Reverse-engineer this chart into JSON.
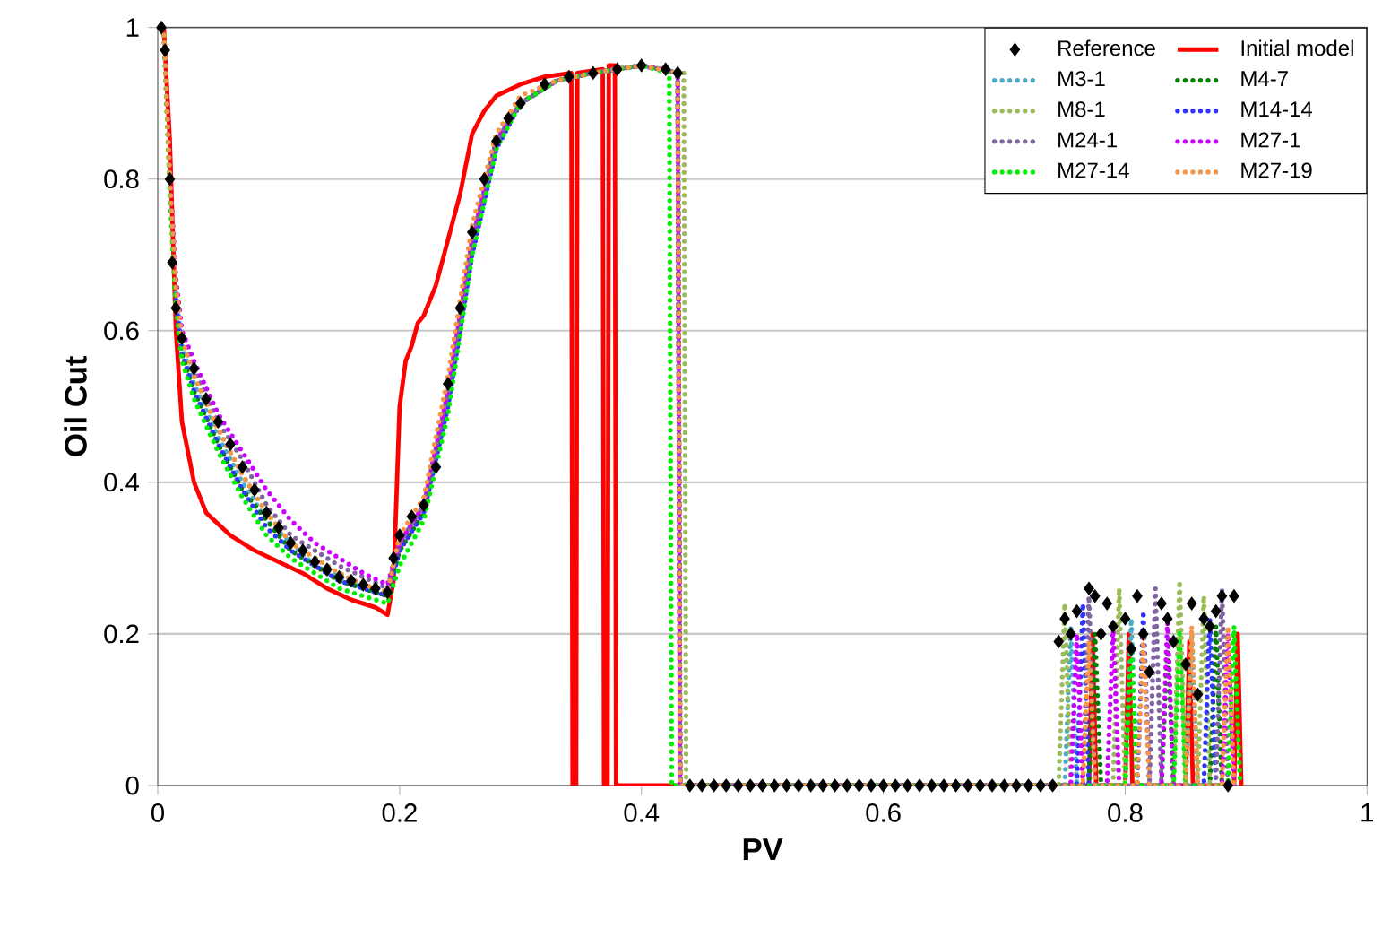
{
  "chart_data": {
    "type": "line",
    "xlabel": "PV",
    "ylabel": "Oil Cut",
    "xlim": [
      0,
      1
    ],
    "ylim": [
      0,
      1
    ],
    "xticks": [
      0,
      0.2,
      0.4,
      0.6,
      0.8,
      1
    ],
    "yticks": [
      0,
      0.2,
      0.4,
      0.6,
      0.8,
      1
    ],
    "grid": "y",
    "legend": "top right",
    "series": [
      {
        "name": "Reference",
        "type": "scatter",
        "marker": "diamond",
        "color": "#000000",
        "x": [
          0.003,
          0.006,
          0.01,
          0.012,
          0.015,
          0.02,
          0.03,
          0.04,
          0.05,
          0.06,
          0.07,
          0.08,
          0.09,
          0.1,
          0.11,
          0.12,
          0.13,
          0.14,
          0.15,
          0.16,
          0.17,
          0.18,
          0.19,
          0.195,
          0.2,
          0.21,
          0.22,
          0.23,
          0.24,
          0.25,
          0.26,
          0.27,
          0.28,
          0.29,
          0.3,
          0.32,
          0.34,
          0.36,
          0.38,
          0.4,
          0.42,
          0.43,
          0.44,
          0.45,
          0.46,
          0.47,
          0.48,
          0.49,
          0.5,
          0.51,
          0.52,
          0.53,
          0.54,
          0.55,
          0.56,
          0.57,
          0.58,
          0.59,
          0.6,
          0.61,
          0.62,
          0.63,
          0.64,
          0.65,
          0.66,
          0.67,
          0.68,
          0.69,
          0.7,
          0.71,
          0.72,
          0.73,
          0.74,
          0.745,
          0.75,
          0.755,
          0.76,
          0.77,
          0.775,
          0.78,
          0.785,
          0.79,
          0.8,
          0.805,
          0.81,
          0.815,
          0.82,
          0.83,
          0.835,
          0.84,
          0.85,
          0.855,
          0.86,
          0.865,
          0.87,
          0.875,
          0.88,
          0.885,
          0.89
        ],
        "values": [
          1,
          0.97,
          0.8,
          0.69,
          0.63,
          0.59,
          0.55,
          0.51,
          0.48,
          0.45,
          0.42,
          0.39,
          0.36,
          0.34,
          0.32,
          0.31,
          0.295,
          0.285,
          0.275,
          0.27,
          0.265,
          0.26,
          0.255,
          0.3,
          0.33,
          0.355,
          0.37,
          0.42,
          0.53,
          0.63,
          0.73,
          0.8,
          0.85,
          0.88,
          0.9,
          0.925,
          0.935,
          0.94,
          0.945,
          0.95,
          0.945,
          0.94,
          0,
          0,
          0,
          0,
          0,
          0,
          0,
          0,
          0,
          0,
          0,
          0,
          0,
          0,
          0,
          0,
          0,
          0,
          0,
          0,
          0,
          0,
          0,
          0,
          0,
          0,
          0,
          0,
          0,
          0,
          0,
          0.19,
          0.22,
          0.2,
          0.23,
          0.26,
          0.25,
          0.2,
          0.24,
          0.21,
          0.22,
          0.18,
          0.25,
          0.2,
          0.15,
          0.24,
          0.22,
          0.19,
          0.16,
          0.24,
          0.12,
          0.22,
          0.21,
          0.23,
          0.25,
          0,
          0.25
        ]
      },
      {
        "name": "Initial model",
        "line_style": "solid",
        "color": "#ff0000",
        "x": [
          0.005,
          0.01,
          0.015,
          0.02,
          0.03,
          0.04,
          0.06,
          0.08,
          0.1,
          0.12,
          0.14,
          0.16,
          0.18,
          0.19,
          0.195,
          0.2,
          0.205,
          0.21,
          0.215,
          0.22,
          0.23,
          0.24,
          0.25,
          0.26,
          0.27,
          0.28,
          0.3,
          0.32,
          0.342,
          0.343,
          0.346,
          0.347,
          0.368,
          0.369,
          0.372,
          0.373,
          0.378,
          0.379,
          0.77,
          0.773,
          0.776,
          0.8,
          0.803,
          0.806,
          0.85,
          0.853,
          0.856,
          0.89,
          0.893,
          0.896
        ],
        "values": [
          1,
          0.85,
          0.6,
          0.48,
          0.4,
          0.36,
          0.33,
          0.31,
          0.295,
          0.28,
          0.26,
          0.245,
          0.235,
          0.225,
          0.27,
          0.5,
          0.56,
          0.58,
          0.61,
          0.62,
          0.66,
          0.72,
          0.78,
          0.86,
          0.89,
          0.91,
          0.925,
          0.935,
          0.94,
          0,
          0,
          0.94,
          0.945,
          0,
          0,
          0.95,
          0.95,
          0,
          0,
          0.2,
          0,
          0,
          0.2,
          0,
          0,
          0.19,
          0,
          0,
          0.2,
          0
        ]
      },
      {
        "name": "M3-1",
        "line_style": "dotted",
        "color": "#4bacc6",
        "x": [
          0.015,
          0.02,
          0.03,
          0.05,
          0.07,
          0.09,
          0.11,
          0.13,
          0.15,
          0.17,
          0.19,
          0.2,
          0.22,
          0.24,
          0.26,
          0.28,
          0.3,
          0.33,
          0.36,
          0.4,
          0.43,
          0.432,
          0.74,
          0.75,
          0.755,
          0.76,
          0.8,
          0.805,
          0.81,
          0.85,
          0.855,
          0.86
        ],
        "values": [
          0.65,
          0.58,
          0.53,
          0.46,
          0.4,
          0.35,
          0.32,
          0.29,
          0.275,
          0.26,
          0.25,
          0.32,
          0.37,
          0.52,
          0.72,
          0.85,
          0.9,
          0.93,
          0.94,
          0.95,
          0.94,
          0,
          0,
          0,
          0.21,
          0,
          0,
          0.22,
          0,
          0,
          0.2,
          0
        ]
      },
      {
        "name": "M4-7",
        "line_style": "dotted",
        "color": "#008000",
        "x": [
          0.005,
          0.01,
          0.015,
          0.02,
          0.03,
          0.05,
          0.07,
          0.09,
          0.11,
          0.13,
          0.15,
          0.17,
          0.19,
          0.2,
          0.22,
          0.24,
          0.26,
          0.28,
          0.3,
          0.33,
          0.36,
          0.4,
          0.43,
          0.432,
          0.74,
          0.77,
          0.775,
          0.78,
          0.83,
          0.835,
          0.84,
          0.87,
          0.875,
          0.88
        ],
        "values": [
          1,
          0.79,
          0.64,
          0.57,
          0.52,
          0.45,
          0.39,
          0.35,
          0.31,
          0.29,
          0.27,
          0.26,
          0.25,
          0.31,
          0.36,
          0.51,
          0.71,
          0.85,
          0.9,
          0.93,
          0.94,
          0.95,
          0.94,
          0,
          0,
          0,
          0.2,
          0,
          0,
          0.19,
          0,
          0,
          0.21,
          0
        ]
      },
      {
        "name": "M8-1",
        "line_style": "dotted",
        "color": "#9bbb59",
        "x": [
          0.005,
          0.01,
          0.015,
          0.02,
          0.03,
          0.05,
          0.07,
          0.09,
          0.11,
          0.13,
          0.15,
          0.17,
          0.19,
          0.2,
          0.22,
          0.24,
          0.26,
          0.28,
          0.3,
          0.33,
          0.36,
          0.4,
          0.435,
          0.437,
          0.745,
          0.75,
          0.755,
          0.79,
          0.795,
          0.8,
          0.84,
          0.845,
          0.85,
          0.86,
          0.865,
          0.87
        ],
        "values": [
          1,
          0.81,
          0.66,
          0.59,
          0.54,
          0.47,
          0.41,
          0.36,
          0.32,
          0.3,
          0.28,
          0.265,
          0.255,
          0.32,
          0.37,
          0.53,
          0.73,
          0.86,
          0.9,
          0.93,
          0.94,
          0.95,
          0.94,
          0,
          0,
          0.24,
          0,
          0,
          0.26,
          0,
          0,
          0.27,
          0,
          0,
          0.25,
          0
        ]
      },
      {
        "name": "M14-14",
        "line_style": "dotted",
        "color": "#3333ff",
        "x": [
          0.015,
          0.02,
          0.03,
          0.05,
          0.07,
          0.09,
          0.11,
          0.13,
          0.15,
          0.17,
          0.19,
          0.2,
          0.22,
          0.24,
          0.26,
          0.28,
          0.3,
          0.33,
          0.36,
          0.4,
          0.43,
          0.432,
          0.76,
          0.765,
          0.77,
          0.81,
          0.815,
          0.82,
          0.865,
          0.87,
          0.875
        ],
        "values": [
          0.64,
          0.57,
          0.52,
          0.45,
          0.39,
          0.34,
          0.31,
          0.29,
          0.27,
          0.26,
          0.25,
          0.31,
          0.36,
          0.5,
          0.7,
          0.84,
          0.9,
          0.93,
          0.94,
          0.95,
          0.94,
          0,
          0,
          0.24,
          0,
          0,
          0.23,
          0,
          0,
          0.22,
          0
        ]
      },
      {
        "name": "M24-1",
        "line_style": "dotted",
        "color": "#8064a2",
        "x": [
          0.005,
          0.01,
          0.015,
          0.02,
          0.03,
          0.05,
          0.07,
          0.09,
          0.11,
          0.13,
          0.15,
          0.17,
          0.19,
          0.2,
          0.22,
          0.24,
          0.26,
          0.28,
          0.3,
          0.33,
          0.36,
          0.4,
          0.43,
          0.432,
          0.765,
          0.77,
          0.775,
          0.82,
          0.825,
          0.83,
          0.875,
          0.88,
          0.885
        ],
        "values": [
          1,
          0.8,
          0.66,
          0.59,
          0.55,
          0.48,
          0.43,
          0.37,
          0.33,
          0.31,
          0.29,
          0.275,
          0.26,
          0.32,
          0.37,
          0.52,
          0.72,
          0.85,
          0.9,
          0.93,
          0.94,
          0.95,
          0.94,
          0,
          0,
          0.25,
          0,
          0,
          0.26,
          0,
          0,
          0.26,
          0
        ]
      },
      {
        "name": "M27-1",
        "line_style": "dotted",
        "color": "#cc00ff",
        "x": [
          0.005,
          0.01,
          0.015,
          0.02,
          0.03,
          0.05,
          0.07,
          0.09,
          0.11,
          0.13,
          0.15,
          0.17,
          0.19,
          0.2,
          0.22,
          0.24,
          0.26,
          0.28,
          0.3,
          0.33,
          0.36,
          0.4,
          0.43,
          0.432,
          0.755,
          0.76,
          0.765,
          0.785,
          0.79,
          0.795,
          0.83,
          0.835,
          0.84,
          0.88,
          0.885,
          0.89
        ],
        "values": [
          1,
          0.81,
          0.67,
          0.6,
          0.56,
          0.49,
          0.44,
          0.39,
          0.35,
          0.32,
          0.3,
          0.28,
          0.265,
          0.32,
          0.37,
          0.52,
          0.72,
          0.85,
          0.9,
          0.93,
          0.94,
          0.95,
          0.94,
          0,
          0,
          0.2,
          0,
          0,
          0.21,
          0,
          0,
          0.22,
          0,
          0,
          0.2,
          0
        ]
      },
      {
        "name": "M27-14",
        "line_style": "dotted",
        "color": "#00ee00",
        "x": [
          0.005,
          0.01,
          0.015,
          0.02,
          0.03,
          0.05,
          0.07,
          0.09,
          0.11,
          0.13,
          0.15,
          0.17,
          0.19,
          0.2,
          0.22,
          0.24,
          0.26,
          0.28,
          0.3,
          0.33,
          0.36,
          0.4,
          0.423,
          0.425,
          0.8,
          0.805,
          0.81,
          0.84,
          0.845,
          0.85,
          0.885,
          0.89,
          0.895
        ],
        "values": [
          1,
          0.78,
          0.63,
          0.56,
          0.51,
          0.44,
          0.38,
          0.33,
          0.3,
          0.28,
          0.26,
          0.25,
          0.24,
          0.29,
          0.35,
          0.49,
          0.7,
          0.84,
          0.9,
          0.93,
          0.94,
          0.95,
          0.94,
          0,
          0,
          0.18,
          0,
          0,
          0.2,
          0,
          0,
          0.21,
          0
        ]
      },
      {
        "name": "M27-19",
        "line_style": "dotted",
        "color": "#f79646",
        "x": [
          0.005,
          0.01,
          0.015,
          0.02,
          0.03,
          0.05,
          0.07,
          0.09,
          0.11,
          0.13,
          0.15,
          0.17,
          0.19,
          0.2,
          0.22,
          0.24,
          0.26,
          0.28,
          0.3,
          0.33,
          0.36,
          0.4,
          0.43,
          0.432,
          0.765,
          0.77,
          0.775,
          0.81,
          0.815,
          0.82,
          0.85,
          0.855,
          0.86,
          0.88,
          0.885,
          0.89
        ],
        "values": [
          1,
          0.8,
          0.66,
          0.59,
          0.54,
          0.47,
          0.41,
          0.36,
          0.32,
          0.3,
          0.28,
          0.265,
          0.255,
          0.33,
          0.38,
          0.54,
          0.74,
          0.86,
          0.91,
          0.93,
          0.94,
          0.95,
          0.94,
          0,
          0,
          0.19,
          0,
          0,
          0.2,
          0,
          0,
          0.21,
          0,
          0,
          0.21,
          0
        ]
      }
    ]
  }
}
